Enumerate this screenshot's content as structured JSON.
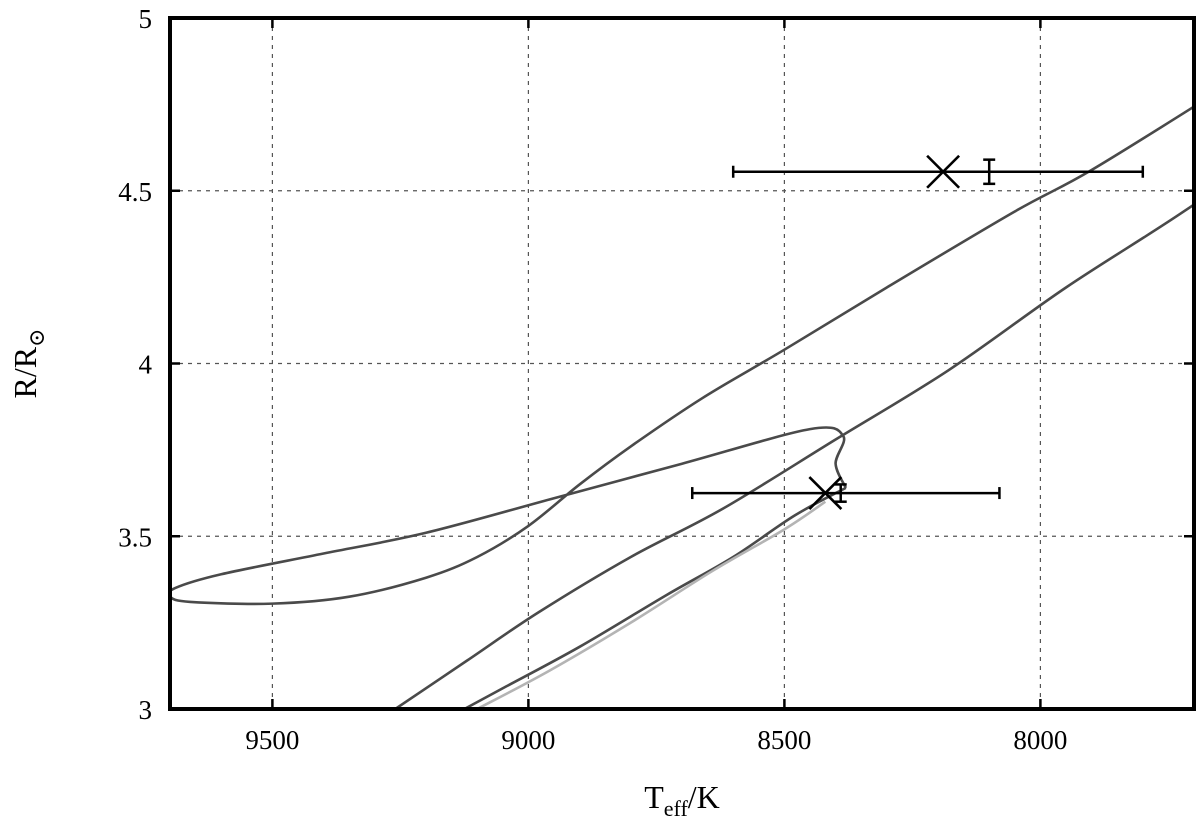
{
  "chart_data": {
    "type": "line",
    "xlabel": {
      "main": "T",
      "sub": "eff",
      "tail": "/K"
    },
    "ylabel": {
      "main": "R/R",
      "sub": "⊙"
    },
    "xlim": [
      9700,
      7700
    ],
    "ylim": [
      3,
      5
    ],
    "x_reversed": true,
    "grid": true,
    "x_ticks": [
      9500,
      9000,
      8500,
      8000
    ],
    "y_ticks": [
      3,
      3.5,
      4,
      4.5,
      5
    ],
    "x_tick_labels": [
      "9500",
      "9000",
      "8500",
      "8000"
    ],
    "y_tick_labels": [
      "3",
      "3.5",
      "4",
      "4.5",
      "5"
    ],
    "series": [
      {
        "color": "#4a4a4a",
        "points": [
          [
            9260,
            3.0
          ],
          [
            9120,
            3.14
          ],
          [
            8980,
            3.28
          ],
          [
            8800,
            3.44
          ],
          [
            8620,
            3.58
          ],
          [
            8400,
            3.78
          ],
          [
            8180,
            3.98
          ],
          [
            7950,
            4.22
          ],
          [
            7720,
            4.44
          ],
          [
            7500,
            4.67
          ],
          [
            7230,
            4.97
          ]
        ]
      },
      {
        "color": "#4a4a4a",
        "points": [
          [
            8380,
            3.64
          ],
          [
            8480,
            3.56
          ],
          [
            8600,
            3.44
          ],
          [
            8730,
            3.33
          ],
          [
            8900,
            3.18
          ],
          [
            9050,
            3.06
          ],
          [
            9125,
            3.0
          ]
        ]
      },
      {
        "color": "#4a4a4a",
        "points": [
          [
            8380,
            3.64
          ],
          [
            8400,
            3.71
          ],
          [
            8385,
            3.79
          ],
          [
            8450,
            3.81
          ],
          [
            8700,
            3.71
          ],
          [
            8950,
            3.61
          ],
          [
            9200,
            3.51
          ],
          [
            9400,
            3.45
          ],
          [
            9600,
            3.39
          ],
          [
            9690,
            3.35
          ],
          [
            9700,
            3.325
          ],
          [
            9660,
            3.31
          ],
          [
            9500,
            3.305
          ],
          [
            9350,
            3.325
          ],
          [
            9200,
            3.38
          ],
          [
            9100,
            3.44
          ],
          [
            9000,
            3.53
          ],
          [
            8900,
            3.65
          ],
          [
            8800,
            3.76
          ],
          [
            8660,
            3.9
          ],
          [
            8500,
            4.04
          ],
          [
            8300,
            4.22
          ],
          [
            8050,
            4.44
          ],
          [
            7900,
            4.56
          ],
          [
            7650,
            4.79
          ],
          [
            7480,
            4.95
          ],
          [
            7440,
            5.0
          ]
        ]
      },
      {
        "color": "#b4b4b4",
        "points": [
          [
            9100,
            3.0
          ],
          [
            8960,
            3.11
          ],
          [
            8800,
            3.25
          ],
          [
            8640,
            3.4
          ],
          [
            8500,
            3.52
          ],
          [
            8420,
            3.6
          ]
        ]
      }
    ],
    "measurements": [
      {
        "x": 8190,
        "y": 4.555,
        "xerr": [
          7800,
          8600
        ],
        "cross_x": 8190,
        "cross_y": 4.555,
        "yerr_x": 8100,
        "yerr": [
          4.52,
          4.59
        ]
      },
      {
        "x": 8420,
        "y": 3.625,
        "xerr": [
          8080,
          8680
        ],
        "cross_x": 8420,
        "cross_y": 3.625,
        "yerr_x": 8390,
        "yerr": [
          3.6,
          3.65
        ]
      }
    ]
  }
}
